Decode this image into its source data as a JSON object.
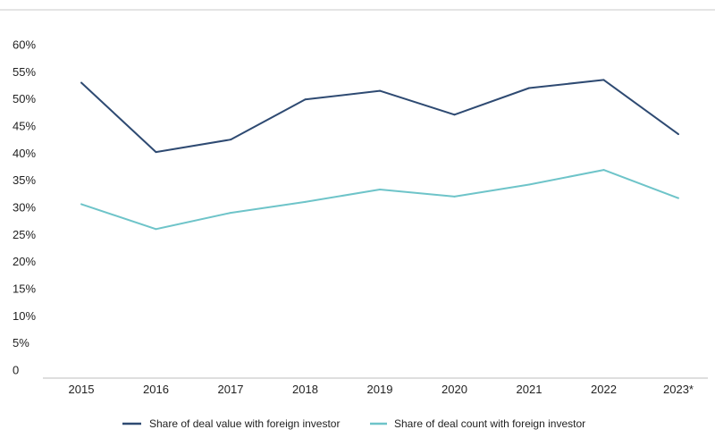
{
  "chart_data": {
    "type": "line",
    "title": "",
    "xlabel": "",
    "ylabel": "",
    "x": [
      "2015",
      "2016",
      "2017",
      "2018",
      "2019",
      "2020",
      "2021",
      "2022",
      "2023*"
    ],
    "ylim": [
      0,
      60
    ],
    "y_ticks": [
      {
        "value": 0,
        "label": "0"
      },
      {
        "value": 5,
        "label": "5%"
      },
      {
        "value": 10,
        "label": "10%"
      },
      {
        "value": 15,
        "label": "15%"
      },
      {
        "value": 20,
        "label": "20%"
      },
      {
        "value": 25,
        "label": "25%"
      },
      {
        "value": 30,
        "label": "30%"
      },
      {
        "value": 35,
        "label": "35%"
      },
      {
        "value": 40,
        "label": "40%"
      },
      {
        "value": 45,
        "label": "45%"
      },
      {
        "value": 50,
        "label": "50%"
      },
      {
        "value": 55,
        "label": "55%"
      },
      {
        "value": 60,
        "label": "60%"
      }
    ],
    "grid": false,
    "legend_position": "bottom",
    "series": [
      {
        "name": "Share of deal value with foreign investor",
        "color": "#2e4a72",
        "values": [
          53,
          40.2,
          42.5,
          49.9,
          51.5,
          47.1,
          52,
          53.5,
          43.5
        ]
      },
      {
        "name": "Share of deal count with foreign investor",
        "color": "#6ec4c9",
        "values": [
          30.6,
          26,
          29,
          31,
          33.3,
          32,
          34.2,
          36.9,
          31.7
        ]
      }
    ]
  }
}
